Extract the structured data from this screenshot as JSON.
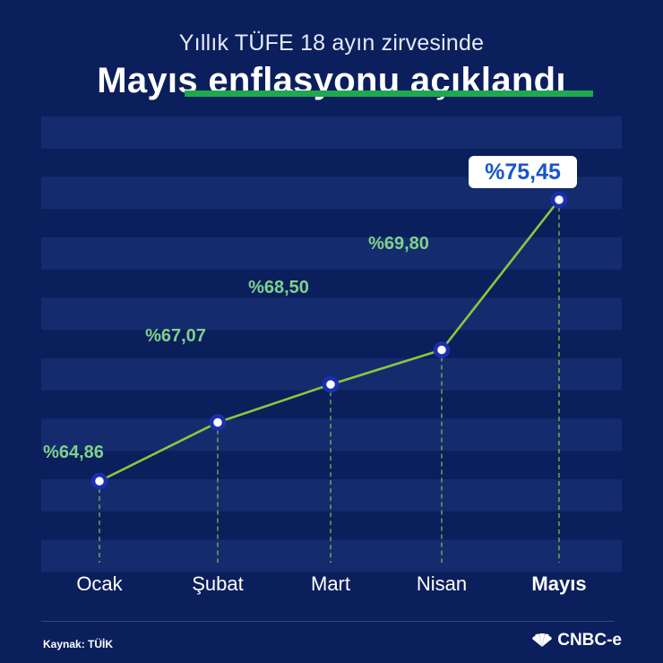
{
  "header": {
    "subtitle": "Yıllık TÜFE 18 ayın zirvesinde",
    "title_part1": "Mayıs",
    "title_part2": "enflasyonu açıklandı"
  },
  "footer": {
    "source": "Kaynak: TÜİK",
    "logo_text": "CNBC-e"
  },
  "colors": {
    "background": "#0b1f5c",
    "band": "#142c6e",
    "line": "#8cc63f",
    "label": "#7fd18a",
    "highlight_label": "#1a56c9",
    "marker_ring": "#1a2fb0",
    "underline": "#1fa84f"
  },
  "chart_data": {
    "type": "line",
    "categories": [
      "Ocak",
      "Şubat",
      "Mart",
      "Nisan",
      "Mayıs"
    ],
    "values": [
      64.86,
      67.07,
      68.5,
      69.8,
      75.45
    ],
    "value_labels": [
      "%64,86",
      "%67,07",
      "%68,50",
      "%69,80",
      "%75,45"
    ],
    "highlight_index": 4,
    "ylim": [
      60,
      78
    ],
    "grid": "horizontal bands",
    "legend": "none"
  }
}
